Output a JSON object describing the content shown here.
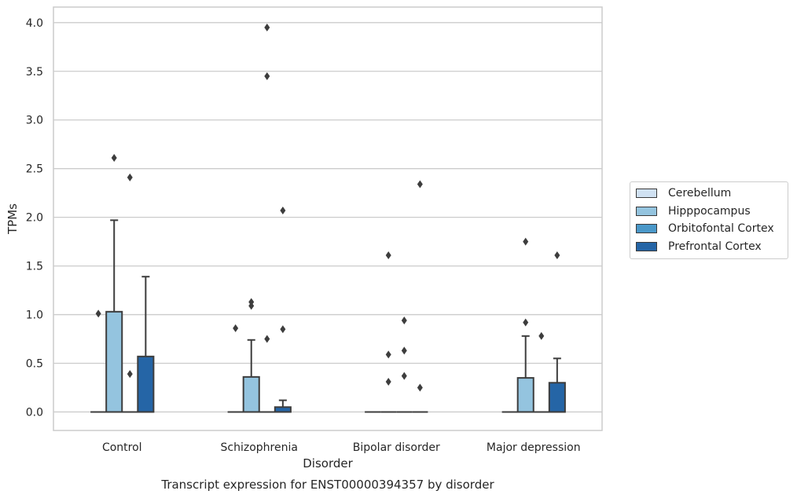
{
  "chart_data": {
    "type": "box",
    "title": "Transcript expression for ENST00000394357 by disorder",
    "xlabel": "Disorder",
    "ylabel": "TPMs",
    "categories": [
      "Control",
      "Schizophrenia",
      "Bipolar disorder",
      "Major depression"
    ],
    "ylim": [
      -0.19,
      4.16
    ],
    "yticks": [
      "0.0",
      "0.5",
      "1.0",
      "1.5",
      "2.0",
      "2.5",
      "3.0",
      "3.5",
      "4.0"
    ],
    "grid": true,
    "legend_position": "right",
    "colors": {
      "Cerebellum": "#d0e1f2",
      "Hipppocampus": "#94c4df",
      "Orbitofontal Cortex": "#4a98c9",
      "Prefrontal Cortex": "#2565a6"
    },
    "series": [
      {
        "name": "Cerebellum",
        "boxes": [
          {
            "q1": 0,
            "median": 0,
            "q3": 0,
            "whisker_low": 0,
            "whisker_high": 0,
            "fliers": [
              1.01
            ]
          },
          {
            "q1": 0,
            "median": 0,
            "q3": 0,
            "whisker_low": 0,
            "whisker_high": 0,
            "fliers": [
              0.86
            ]
          },
          {
            "q1": 0,
            "median": 0,
            "q3": 0,
            "whisker_low": 0,
            "whisker_high": 0,
            "fliers": []
          },
          {
            "q1": 0,
            "median": 0,
            "q3": 0,
            "whisker_low": 0,
            "whisker_high": 0,
            "fliers": []
          }
        ]
      },
      {
        "name": "Hipppocampus",
        "boxes": [
          {
            "q1": 0,
            "median": 0,
            "q3": 1.03,
            "whisker_low": 0,
            "whisker_high": 1.97,
            "fliers": [
              2.61
            ]
          },
          {
            "q1": 0,
            "median": 0,
            "q3": 0.36,
            "whisker_low": 0,
            "whisker_high": 0.74,
            "fliers": [
              1.09,
              1.13
            ]
          },
          {
            "q1": 0,
            "median": 0,
            "q3": 0,
            "whisker_low": 0,
            "whisker_high": 0,
            "fliers": [
              0.31,
              0.59,
              1.61
            ]
          },
          {
            "q1": 0,
            "median": 0,
            "q3": 0.35,
            "whisker_low": 0,
            "whisker_high": 0.78,
            "fliers": [
              0.92,
              1.75
            ]
          }
        ]
      },
      {
        "name": "Orbitofontal Cortex",
        "boxes": [
          {
            "q1": 0,
            "median": 0,
            "q3": 0,
            "whisker_low": 0,
            "whisker_high": 0,
            "fliers": [
              0.39,
              2.41
            ]
          },
          {
            "q1": 0,
            "median": 0,
            "q3": 0,
            "whisker_low": 0,
            "whisker_high": 0,
            "fliers": [
              0.75,
              3.45,
              3.95
            ]
          },
          {
            "q1": 0,
            "median": 0,
            "q3": 0,
            "whisker_low": 0,
            "whisker_high": 0,
            "fliers": [
              0.37,
              0.63,
              0.94
            ]
          },
          {
            "q1": 0,
            "median": 0,
            "q3": 0,
            "whisker_low": 0,
            "whisker_high": 0,
            "fliers": [
              0.78
            ]
          }
        ]
      },
      {
        "name": "Prefrontal Cortex",
        "boxes": [
          {
            "q1": 0,
            "median": 0,
            "q3": 0.57,
            "whisker_low": 0,
            "whisker_high": 1.39,
            "fliers": []
          },
          {
            "q1": 0,
            "median": 0,
            "q3": 0.05,
            "whisker_low": 0,
            "whisker_high": 0.12,
            "fliers": [
              0.85,
              2.07
            ]
          },
          {
            "q1": 0,
            "median": 0,
            "q3": 0,
            "whisker_low": 0,
            "whisker_high": 0,
            "fliers": [
              0.25,
              2.34
            ]
          },
          {
            "q1": 0,
            "median": 0,
            "q3": 0.3,
            "whisker_low": 0,
            "whisker_high": 0.55,
            "fliers": [
              1.61
            ]
          }
        ]
      }
    ]
  }
}
